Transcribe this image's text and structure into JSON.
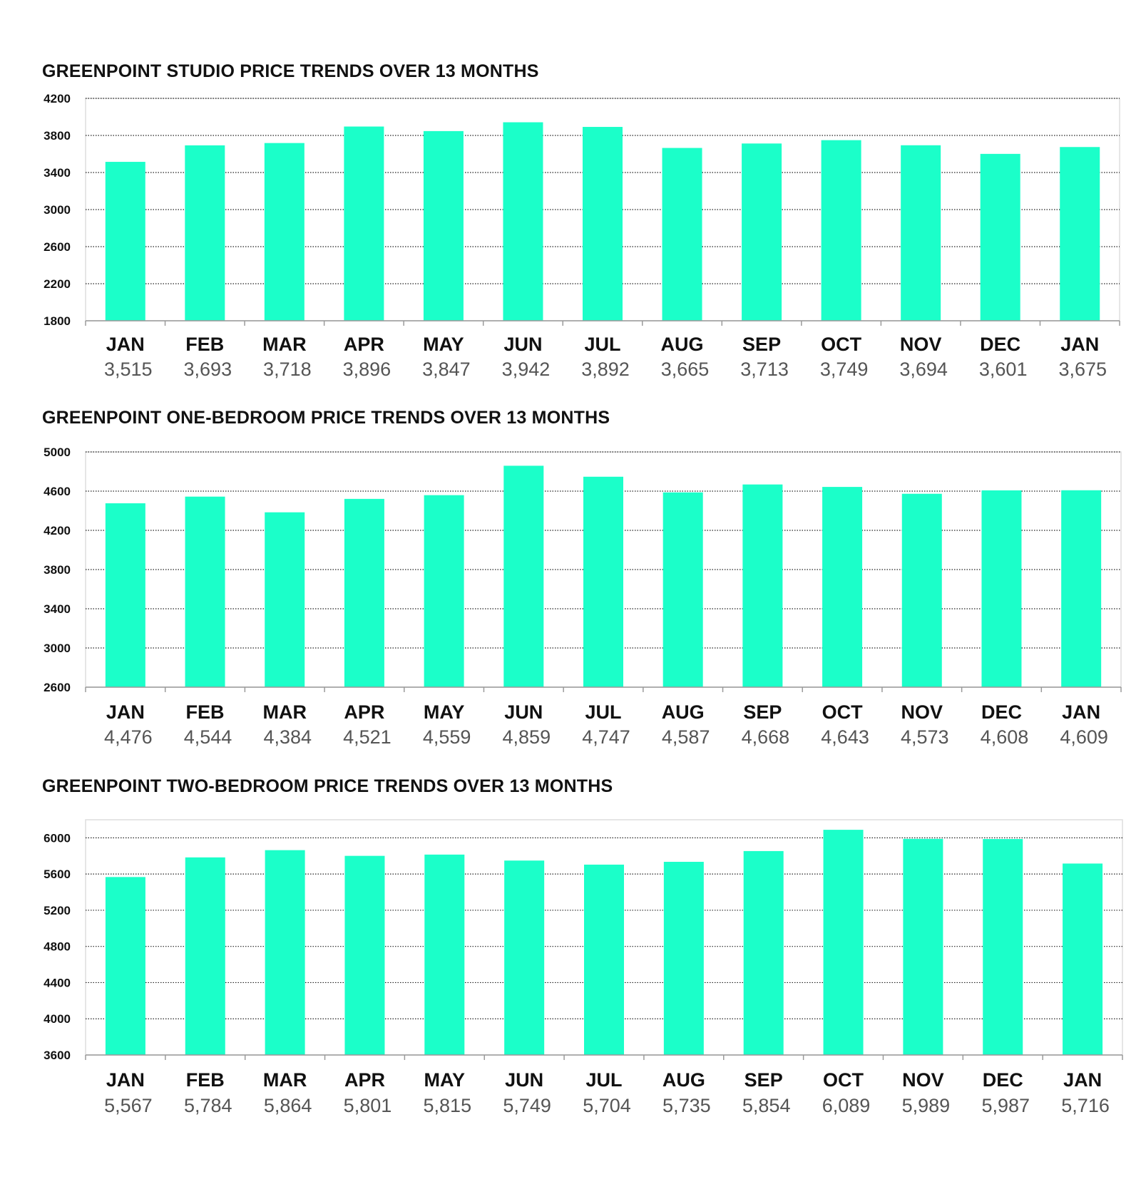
{
  "colors": {
    "bar": "#1bffc9",
    "grid": "#222222",
    "frame": "#dddddd",
    "axis": "#9a9a9a",
    "title": "#111111",
    "value_text": "#555555"
  },
  "chart_data": [
    {
      "type": "bar",
      "title": "GREENPOINT STUDIO PRICE TRENDS OVER 13 MONTHS",
      "categories": [
        "JAN",
        "FEB",
        "MAR",
        "APR",
        "MAY",
        "JUN",
        "JUL",
        "AUG",
        "SEP",
        "OCT",
        "NOV",
        "DEC",
        "JAN"
      ],
      "values": [
        3515,
        3693,
        3718,
        3896,
        3847,
        3942,
        3892,
        3665,
        3713,
        3749,
        3694,
        3601,
        3675
      ],
      "value_labels": [
        "3,515",
        "3,693",
        "3,718",
        "3,896",
        "3,847",
        "3,942",
        "3,892",
        "3,665",
        "3,713",
        "3,749",
        "3,694",
        "3,601",
        "3,675"
      ],
      "ylim": [
        1800,
        4200
      ],
      "yticks": [
        1800,
        2200,
        2600,
        3000,
        3400,
        3800,
        4200
      ],
      "ytick_labels": [
        "1800",
        "2200",
        "2600",
        "3000",
        "3400",
        "3800",
        "4200"
      ],
      "grid": true,
      "xlabel": "",
      "ylabel": ""
    },
    {
      "type": "bar",
      "title": "GREENPOINT ONE-BEDROOM PRICE TRENDS OVER 13 MONTHS",
      "categories": [
        "JAN",
        "FEB",
        "MAR",
        "APR",
        "MAY",
        "JUN",
        "JUL",
        "AUG",
        "SEP",
        "OCT",
        "NOV",
        "DEC",
        "JAN"
      ],
      "values": [
        4476,
        4544,
        4384,
        4521,
        4559,
        4859,
        4747,
        4587,
        4668,
        4643,
        4573,
        4608,
        4609
      ],
      "value_labels": [
        "4,476",
        "4,544",
        "4,384",
        "4,521",
        "4,559",
        "4,859",
        "4,747",
        "4,587",
        "4,668",
        "4,643",
        "4,573",
        "4,608",
        "4,609"
      ],
      "ylim": [
        2600,
        5000
      ],
      "yticks": [
        2600,
        3000,
        3400,
        3800,
        4200,
        4600,
        5000
      ],
      "ytick_labels": [
        "2600",
        "3000",
        "3400",
        "3800",
        "4200",
        "4600",
        "5000"
      ],
      "grid": true,
      "xlabel": "",
      "ylabel": ""
    },
    {
      "type": "bar",
      "title": "GREENPOINT TWO-BEDROOM PRICE TRENDS OVER 13 MONTHS",
      "categories": [
        "JAN",
        "FEB",
        "MAR",
        "APR",
        "MAY",
        "JUN",
        "JUL",
        "AUG",
        "SEP",
        "OCT",
        "NOV",
        "DEC",
        "JAN"
      ],
      "values": [
        5567,
        5784,
        5864,
        5801,
        5815,
        5749,
        5704,
        5735,
        5854,
        6089,
        5989,
        5987,
        5716
      ],
      "value_labels": [
        "5,567",
        "5,784",
        "5,864",
        "5,801",
        "5,815",
        "5,749",
        "5,704",
        "5,735",
        "5,854",
        "6,089",
        "5,989",
        "5,987",
        "5,716"
      ],
      "ylim": [
        3600,
        6200
      ],
      "yticks": [
        3600,
        4000,
        4400,
        4800,
        5200,
        5600,
        6000
      ],
      "ytick_labels": [
        "3600",
        "4000",
        "4400",
        "4800",
        "5200",
        "5600",
        "6000"
      ],
      "grid": true,
      "xlabel": "",
      "ylabel": ""
    }
  ]
}
